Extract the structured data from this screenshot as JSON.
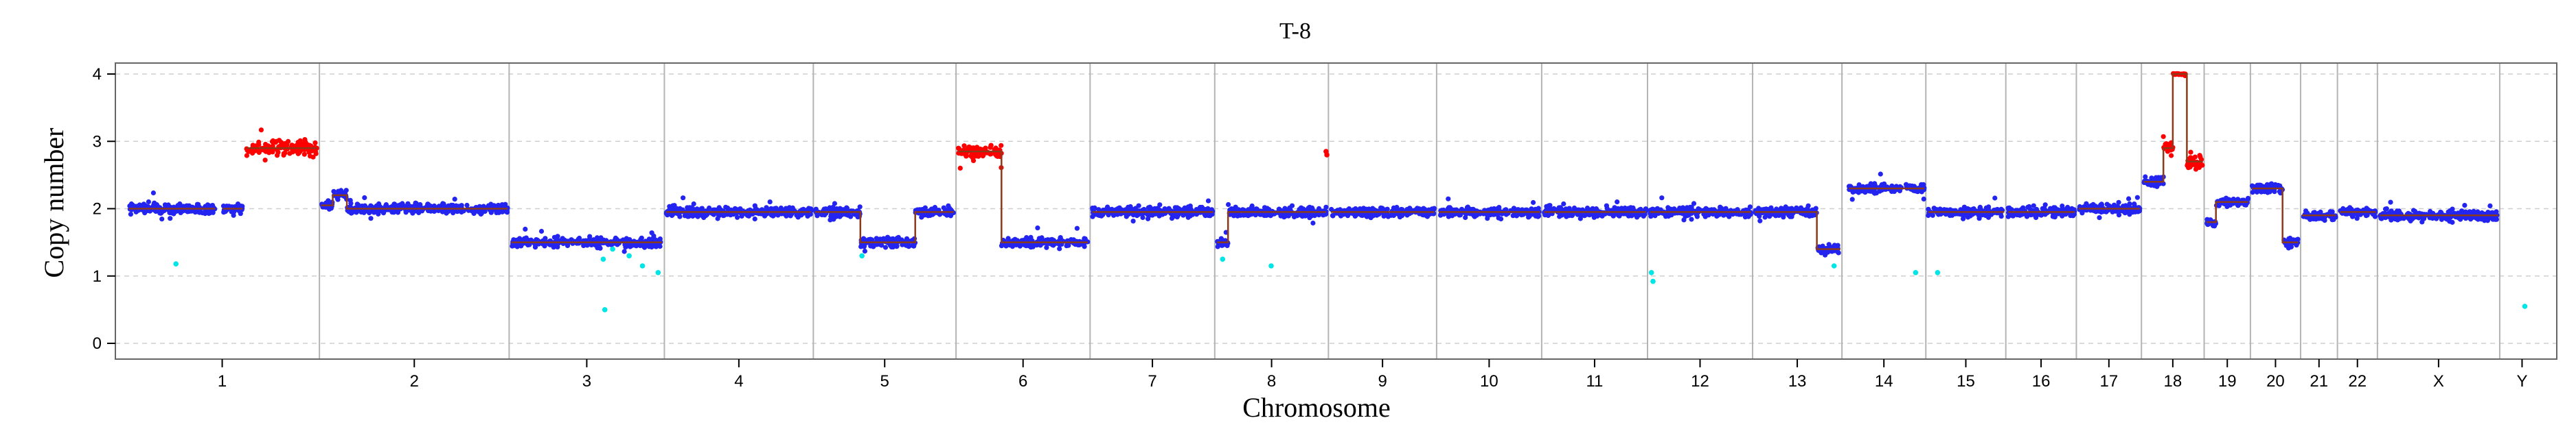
{
  "chart_data": {
    "type": "scatter",
    "title": "T-8",
    "xlabel": "Chromosome",
    "ylabel": "Copy number",
    "ylim": [
      0,
      4
    ],
    "yticks": [
      0,
      1,
      2,
      3,
      4
    ],
    "grid": "horizontal dashed",
    "chromosomes": [
      {
        "name": "1",
        "start": 0,
        "end": 248
      },
      {
        "name": "2",
        "start": 248,
        "end": 490
      },
      {
        "name": "3",
        "start": 490,
        "end": 688
      },
      {
        "name": "4",
        "start": 688,
        "end": 878
      },
      {
        "name": "5",
        "start": 878,
        "end": 1060
      },
      {
        "name": "6",
        "start": 1060,
        "end": 1231
      },
      {
        "name": "7",
        "start": 1231,
        "end": 1390
      },
      {
        "name": "8",
        "start": 1390,
        "end": 1535
      },
      {
        "name": "9",
        "start": 1535,
        "end": 1673
      },
      {
        "name": "10",
        "start": 1673,
        "end": 1807
      },
      {
        "name": "11",
        "start": 1807,
        "end": 1942
      },
      {
        "name": "12",
        "start": 1942,
        "end": 2076
      },
      {
        "name": "13",
        "start": 2076,
        "end": 2190
      },
      {
        "name": "14",
        "start": 2190,
        "end": 2297
      },
      {
        "name": "15",
        "start": 2297,
        "end": 2399
      },
      {
        "name": "16",
        "start": 2399,
        "end": 2489
      },
      {
        "name": "17",
        "start": 2489,
        "end": 2572
      },
      {
        "name": "18",
        "start": 2572,
        "end": 2652
      },
      {
        "name": "19",
        "start": 2652,
        "end": 2711
      },
      {
        "name": "20",
        "start": 2711,
        "end": 2775
      },
      {
        "name": "21",
        "start": 2775,
        "end": 2822
      },
      {
        "name": "22",
        "start": 2822,
        "end": 2873
      },
      {
        "name": "X",
        "start": 2873,
        "end": 3029
      },
      {
        "name": "Y",
        "start": 3029,
        "end": 3086
      }
    ],
    "segments": [
      {
        "start": 5,
        "end": 115,
        "cn": 2.0
      },
      {
        "start": 125,
        "end": 150,
        "cn": 2.0
      },
      {
        "start": 155,
        "end": 245,
        "cn": 2.9
      },
      {
        "start": 250,
        "end": 265,
        "cn": 2.05
      },
      {
        "start": 265,
        "end": 283,
        "cn": 2.2
      },
      {
        "start": 283,
        "end": 488,
        "cn": 2.0
      },
      {
        "start": 493,
        "end": 685,
        "cn": 1.5
      },
      {
        "start": 690,
        "end": 875,
        "cn": 1.95
      },
      {
        "start": 880,
        "end": 938,
        "cn": 1.95
      },
      {
        "start": 938,
        "end": 1008,
        "cn": 1.5
      },
      {
        "start": 1008,
        "end": 1057,
        "cn": 1.95
      },
      {
        "start": 1063,
        "end": 1118,
        "cn": 2.85
      },
      {
        "start": 1118,
        "end": 1228,
        "cn": 1.5
      },
      {
        "start": 1234,
        "end": 1388,
        "cn": 1.95
      },
      {
        "start": 1393,
        "end": 1407,
        "cn": 1.5
      },
      {
        "start": 1407,
        "end": 1532,
        "cn": 1.95
      },
      {
        "start": 1538,
        "end": 1670,
        "cn": 1.95
      },
      {
        "start": 1676,
        "end": 1805,
        "cn": 1.95
      },
      {
        "start": 1810,
        "end": 1940,
        "cn": 1.95
      },
      {
        "start": 1945,
        "end": 2074,
        "cn": 1.95
      },
      {
        "start": 2079,
        "end": 2158,
        "cn": 1.95
      },
      {
        "start": 2158,
        "end": 2188,
        "cn": 1.4
      },
      {
        "start": 2199,
        "end": 2295,
        "cn": 2.3
      },
      {
        "start": 2300,
        "end": 2397,
        "cn": 1.95
      },
      {
        "start": 2402,
        "end": 2487,
        "cn": 1.95
      },
      {
        "start": 2492,
        "end": 2570,
        "cn": 2.0
      },
      {
        "start": 2575,
        "end": 2600,
        "cn": 2.4
      },
      {
        "start": 2600,
        "end": 2612,
        "cn": 2.9
      },
      {
        "start": 2612,
        "end": 2630,
        "cn": 4.0
      },
      {
        "start": 2630,
        "end": 2650,
        "cn": 2.7
      },
      {
        "start": 2655,
        "end": 2667,
        "cn": 1.8
      },
      {
        "start": 2667,
        "end": 2708,
        "cn": 2.1
      },
      {
        "start": 2713,
        "end": 2752,
        "cn": 2.3
      },
      {
        "start": 2752,
        "end": 2772,
        "cn": 1.5
      },
      {
        "start": 2777,
        "end": 2820,
        "cn": 1.9
      },
      {
        "start": 2825,
        "end": 2871,
        "cn": 1.95
      },
      {
        "start": 2876,
        "end": 3027,
        "cn": 1.9
      }
    ],
    "outliers": [
      {
        "x": 65,
        "y": 1.18
      },
      {
        "x": 610,
        "y": 1.25
      },
      {
        "x": 622,
        "y": 1.4
      },
      {
        "x": 643,
        "y": 1.3
      },
      {
        "x": 660,
        "y": 1.15
      },
      {
        "x": 680,
        "y": 1.05
      },
      {
        "x": 612,
        "y": 0.5
      },
      {
        "x": 940,
        "y": 1.3
      },
      {
        "x": 1400,
        "y": 1.25
      },
      {
        "x": 1462,
        "y": 1.15
      },
      {
        "x": 1532,
        "y": 2.85
      },
      {
        "x": 1533,
        "y": 2.8
      },
      {
        "x": 1947,
        "y": 1.05
      },
      {
        "x": 1949,
        "y": 0.92
      },
      {
        "x": 2180,
        "y": 1.15
      },
      {
        "x": 2284,
        "y": 1.05
      },
      {
        "x": 2312,
        "y": 1.05
      },
      {
        "x": 3061,
        "y": 0.55
      }
    ]
  }
}
